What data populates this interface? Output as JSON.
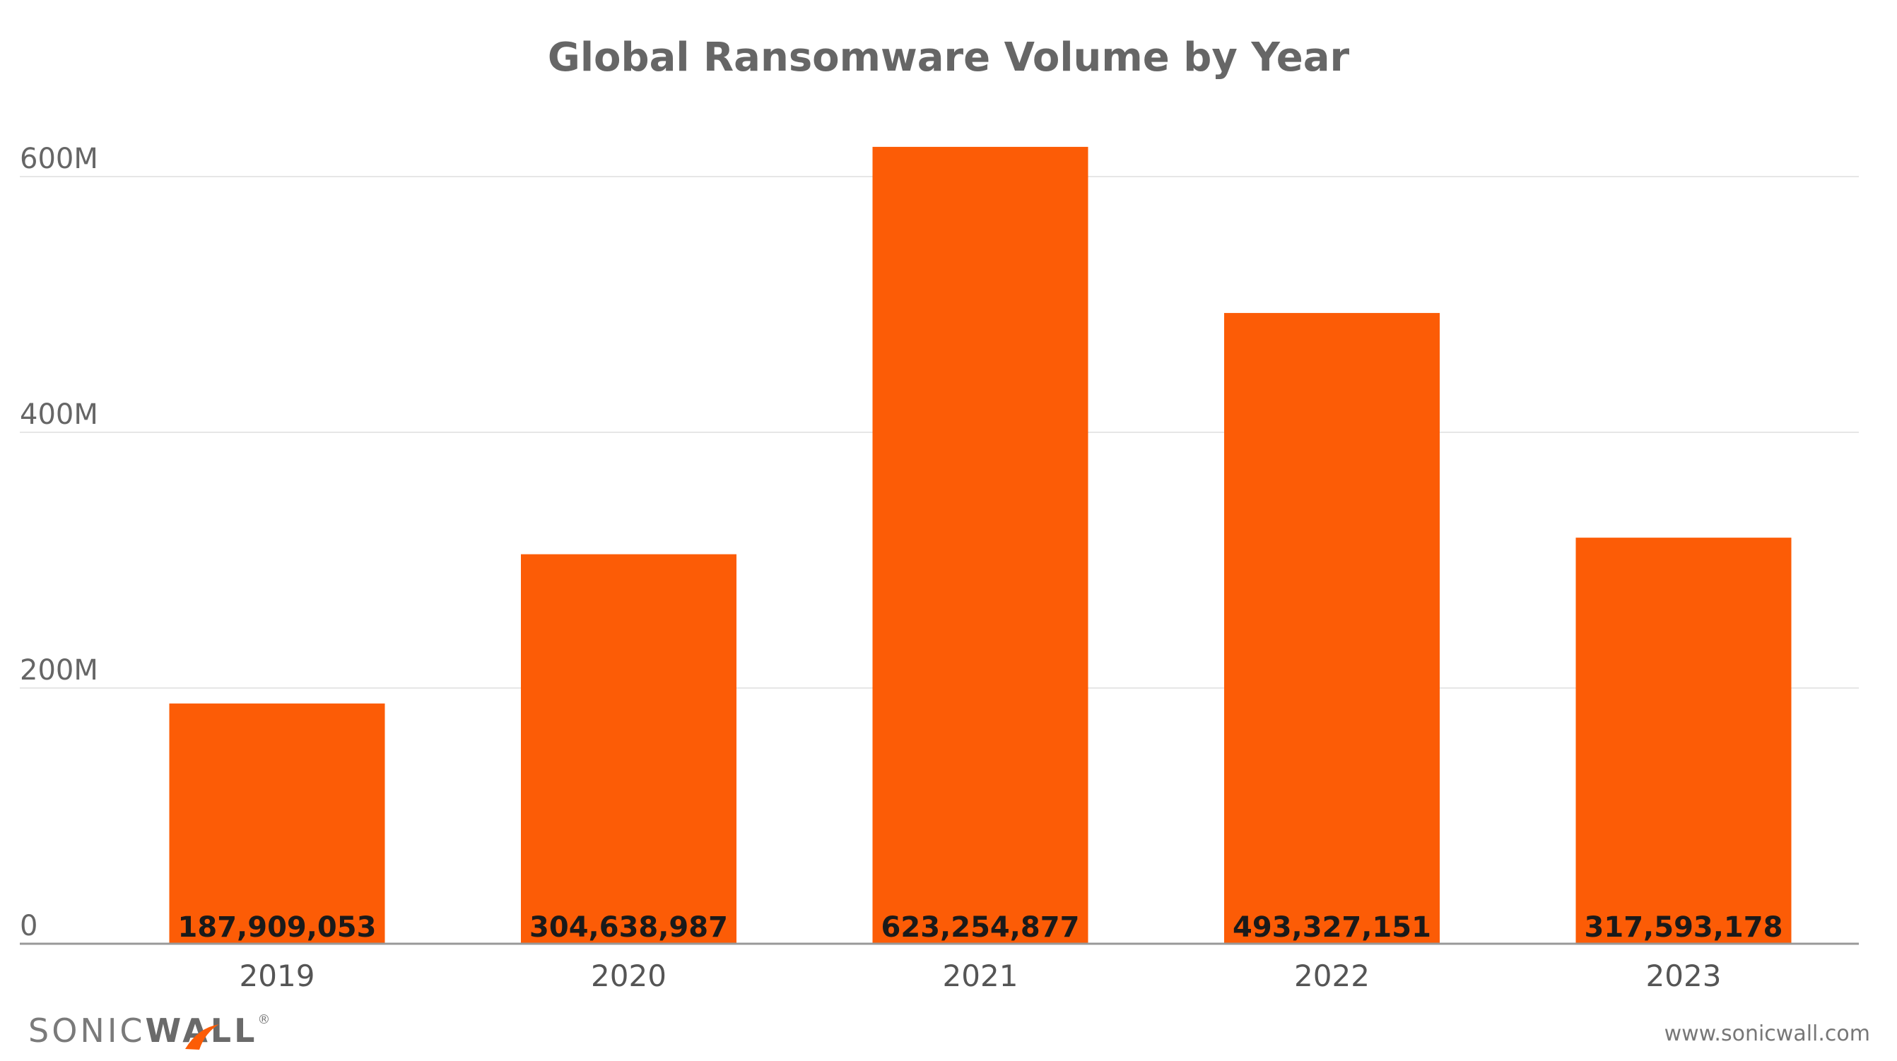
{
  "chart_data": {
    "type": "bar",
    "title": "Global Ransomware Volume by Year",
    "categories": [
      "2019",
      "2020",
      "2021",
      "2022",
      "2023"
    ],
    "values": [
      187909053,
      304638987,
      623254877,
      493327151,
      317593178
    ],
    "data_labels": [
      "187,909,053",
      "304,638,987",
      "623,254,877",
      "493,327,151",
      "317,593,178"
    ],
    "ylim": [
      0,
      600000000
    ],
    "yticks": [
      {
        "value": 0,
        "label": "0"
      },
      {
        "value": 200000000,
        "label": "200M"
      },
      {
        "value": 400000000,
        "label": "400M"
      },
      {
        "value": 600000000,
        "label": "600M"
      }
    ],
    "grid": true,
    "bar_color": "#fc5c06"
  },
  "branding": {
    "logo_text_light": "SONIC",
    "logo_text_bold": "WALL",
    "logo_mark": "®",
    "logo_accent_color": "#fc5c06",
    "url": "www.sonicwall.com"
  }
}
